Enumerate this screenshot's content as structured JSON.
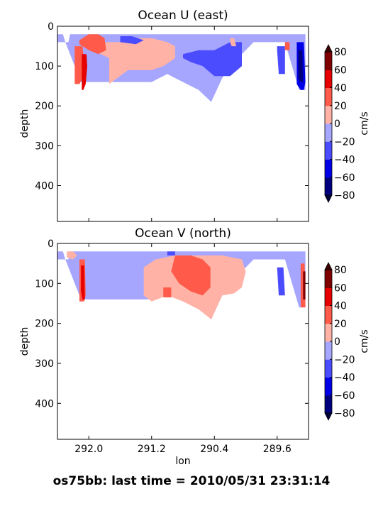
{
  "footer": "os75bb: last time = 2010/05/31 23:31:14",
  "colors": {
    "bins": [
      "#00007f",
      "#0000e6",
      "#4c4cff",
      "#a6a6ff",
      "#ffb2a5",
      "#ff5a4a",
      "#e60000",
      "#7f0000"
    ],
    "under": "#00003c",
    "over": "#3c0000"
  },
  "chart_data": [
    {
      "type": "heatmap",
      "title": "Ocean U (east)",
      "xlabel": "",
      "ylabel": "depth",
      "xlim": [
        292.4,
        289.2
      ],
      "ylim": [
        490,
        0
      ],
      "xticks": [
        "292.0",
        "291.2",
        "290.4",
        "289.6"
      ],
      "yticks": [
        "0",
        "100",
        "200",
        "300",
        "400"
      ],
      "colorbar": {
        "label": "cm/s",
        "ticks": [
          "80",
          "60",
          "40",
          "20",
          "0",
          "−20",
          "−40",
          "−60",
          "−80"
        ],
        "levels": [
          -80,
          -60,
          -40,
          -20,
          0,
          20,
          40,
          60,
          80
        ]
      },
      "regions": [
        {
          "value": -10,
          "lon": [
            292.4,
            292.33,
            292.3,
            292.26,
            292.24,
            291.6,
            291.2,
            291.0,
            290.8,
            290.5,
            290.36,
            290.2,
            290.0,
            289.9,
            289.75,
            289.6,
            289.5,
            289.32,
            289.24,
            289.24,
            289.32,
            289.5,
            289.7,
            289.9,
            290.0,
            290.2,
            290.3,
            290.44,
            290.6,
            290.8,
            291.0,
            291.2,
            291.6,
            291.8,
            292.1,
            292.3,
            292.4
          ],
          "depth": [
            20,
            20,
            40,
            40,
            20,
            20,
            20,
            20,
            20,
            20,
            20,
            20,
            20,
            20,
            20,
            20,
            20,
            20,
            20,
            160,
            160,
            40,
            40,
            40,
            60,
            100,
            130,
            190,
            160,
            140,
            120,
            140,
            140,
            140,
            140,
            40,
            40
          ]
        },
        {
          "value": 10,
          "lon": [
            292.0,
            291.6,
            291.4,
            291.2,
            291.0,
            290.9,
            290.9,
            291.05,
            291.2,
            291.5,
            291.74,
            291.74,
            291.95
          ],
          "depth": [
            40,
            40,
            30,
            30,
            40,
            50,
            80,
            100,
            110,
            110,
            145,
            80,
            60
          ]
        },
        {
          "value": 30,
          "lon": [
            292.12,
            292.0,
            291.88,
            291.8,
            291.78,
            291.88,
            292.0,
            292.12
          ],
          "depth": [
            35,
            20,
            20,
            30,
            60,
            70,
            60,
            45
          ]
        },
        {
          "value": 30,
          "lon": [
            292.18,
            292.08,
            292.06,
            292.08,
            292.12,
            292.18
          ],
          "depth": [
            50,
            50,
            90,
            130,
            145,
            145
          ]
        },
        {
          "value": 50,
          "lon": [
            292.09,
            292.03,
            292.02,
            292.04,
            292.07,
            292.09
          ],
          "depth": [
            70,
            70,
            100,
            145,
            160,
            160
          ]
        },
        {
          "value": -30,
          "lon": [
            290.8,
            290.6,
            290.4,
            290.2,
            290.05,
            290.05,
            290.2,
            290.4,
            290.55,
            290.7,
            290.8
          ],
          "depth": [
            70,
            60,
            60,
            40,
            40,
            100,
            125,
            125,
            100,
            90,
            80
          ]
        },
        {
          "value": -30,
          "lon": [
            291.6,
            291.45,
            291.3,
            291.4,
            291.6
          ],
          "depth": [
            25,
            25,
            35,
            45,
            40
          ]
        },
        {
          "value": -40,
          "lon": [
            289.6,
            289.5,
            289.5,
            289.58,
            289.6
          ],
          "depth": [
            50,
            50,
            120,
            120,
            60
          ]
        },
        {
          "value": -50,
          "lon": [
            289.35,
            289.26,
            289.24,
            289.26,
            289.3,
            289.35
          ],
          "depth": [
            40,
            40,
            140,
            160,
            160,
            145
          ]
        },
        {
          "value": -70,
          "lon": [
            289.33,
            289.28,
            289.27,
            289.3,
            289.33
          ],
          "depth": [
            60,
            60,
            140,
            140,
            130
          ]
        },
        {
          "value": 30,
          "lon": [
            289.5,
            289.44,
            289.44,
            289.5
          ],
          "depth": [
            40,
            40,
            60,
            60
          ]
        },
        {
          "value": 10,
          "lon": [
            290.2,
            290.15,
            290.12,
            290.18,
            290.2
          ],
          "depth": [
            30,
            30,
            50,
            50,
            40
          ]
        },
        {
          "value": 10,
          "lon": [
            291.3,
            291.2,
            291.2,
            291.3
          ],
          "depth": [
            60,
            60,
            75,
            75
          ]
        }
      ]
    },
    {
      "type": "heatmap",
      "title": "Ocean V (north)",
      "xlabel": "lon",
      "ylabel": "depth",
      "xlim": [
        292.4,
        289.2
      ],
      "ylim": [
        490,
        0
      ],
      "xticks": [
        "292.0",
        "291.2",
        "290.4",
        "289.6"
      ],
      "yticks": [
        "0",
        "100",
        "200",
        "300",
        "400"
      ],
      "colorbar": {
        "label": "cm/s",
        "ticks": [
          "80",
          "60",
          "40",
          "20",
          "0",
          "−20",
          "−40",
          "−60",
          "−80"
        ],
        "levels": [
          -80,
          -60,
          -40,
          -20,
          0,
          20,
          40,
          60,
          80
        ]
      },
      "regions": [
        {
          "value": -10,
          "lon": [
            292.4,
            292.33,
            292.3,
            292.26,
            292.24,
            291.6,
            291.2,
            291.0,
            290.8,
            290.5,
            290.36,
            290.2,
            290.0,
            289.9,
            289.75,
            289.6,
            289.5,
            289.32,
            289.24,
            289.24,
            289.32,
            289.5,
            289.7,
            289.9,
            290.0,
            290.2,
            290.3,
            290.44,
            290.6,
            290.8,
            291.0,
            291.2,
            291.6,
            291.8,
            292.1,
            292.3,
            292.4
          ],
          "depth": [
            20,
            20,
            40,
            40,
            20,
            20,
            20,
            20,
            20,
            20,
            20,
            20,
            20,
            20,
            20,
            20,
            20,
            20,
            20,
            160,
            160,
            40,
            40,
            40,
            60,
            100,
            130,
            190,
            160,
            140,
            120,
            140,
            140,
            140,
            140,
            40,
            40
          ]
        },
        {
          "value": 10,
          "lon": [
            291.15,
            290.9,
            290.6,
            290.3,
            290.05,
            290.0,
            290.05,
            290.15,
            290.3,
            290.44,
            290.6,
            290.8,
            291.0,
            291.2,
            291.3,
            291.3
          ],
          "depth": [
            40,
            30,
            30,
            30,
            40,
            70,
            110,
            125,
            130,
            190,
            165,
            145,
            130,
            145,
            130,
            60
          ]
        },
        {
          "value": 30,
          "lon": [
            290.9,
            290.7,
            290.55,
            290.45,
            290.45,
            290.55,
            290.7,
            290.85,
            290.95
          ],
          "depth": [
            30,
            30,
            40,
            60,
            110,
            130,
            120,
            100,
            70
          ]
        },
        {
          "value": 30,
          "lon": [
            291.05,
            290.95,
            290.95,
            291.05
          ],
          "depth": [
            110,
            110,
            135,
            135
          ]
        },
        {
          "value": 10,
          "lon": [
            292.28,
            292.2,
            292.15,
            292.2,
            292.28
          ],
          "depth": [
            20,
            20,
            30,
            40,
            35
          ]
        },
        {
          "value": 30,
          "lon": [
            292.12,
            292.05,
            292.04,
            292.06,
            292.12
          ],
          "depth": [
            40,
            40,
            130,
            145,
            145
          ]
        },
        {
          "value": 50,
          "lon": [
            292.1,
            292.06,
            292.05,
            292.08,
            292.1
          ],
          "depth": [
            55,
            55,
            140,
            140,
            120
          ]
        },
        {
          "value": -30,
          "lon": [
            291.0,
            290.9,
            290.9,
            291.0
          ],
          "depth": [
            20,
            20,
            30,
            30
          ]
        },
        {
          "value": -30,
          "lon": [
            289.6,
            289.52,
            289.5,
            289.58
          ],
          "depth": [
            60,
            60,
            130,
            130
          ]
        },
        {
          "value": 30,
          "lon": [
            289.3,
            289.25,
            289.24,
            289.3
          ],
          "depth": [
            50,
            50,
            160,
            160
          ]
        },
        {
          "value": 70,
          "lon": [
            289.27,
            289.24,
            289.24,
            289.27
          ],
          "depth": [
            70,
            70,
            140,
            140
          ]
        }
      ]
    }
  ]
}
